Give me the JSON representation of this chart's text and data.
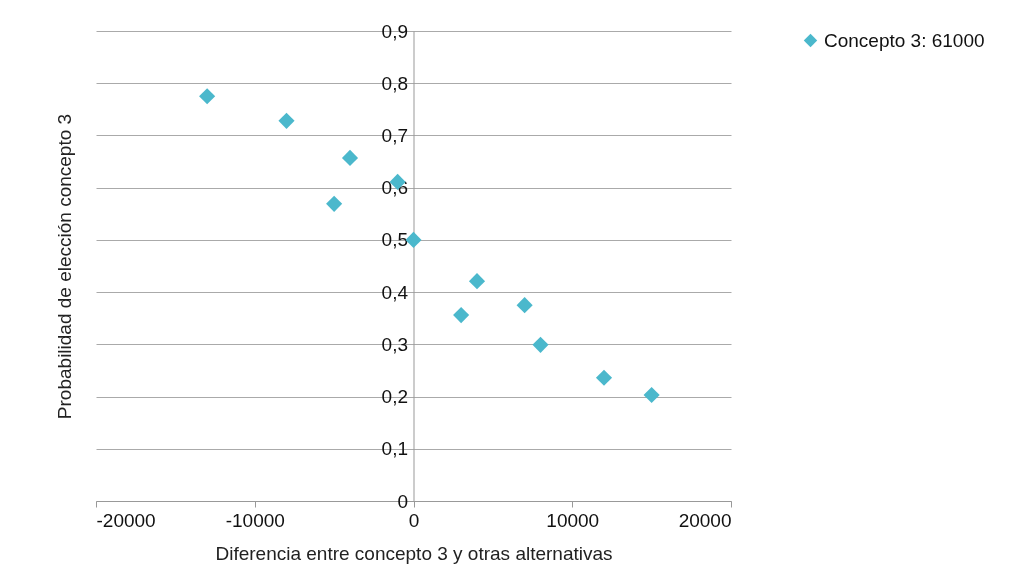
{
  "chart_data": {
    "type": "scatter",
    "xlabel": "Diferencia entre concepto 3 y otras alternativas",
    "ylabel": "Probabilidad de elección concepto 3",
    "x": [
      -13000,
      -8000,
      -4000,
      -5000,
      -1000,
      0,
      4000,
      3000,
      7000,
      8000,
      12000,
      15000
    ],
    "series": [
      {
        "name": "Concepto 3: 61000",
        "color": "#4bb8cc",
        "values": [
          0.775,
          0.728,
          0.657,
          0.569,
          0.611,
          0.5,
          0.421,
          0.356,
          0.375,
          0.299,
          0.236,
          0.203
        ]
      }
    ],
    "xlim": [
      -20000,
      20000
    ],
    "xticks": [
      -20000,
      -10000,
      0,
      10000,
      20000
    ],
    "ylim": [
      0,
      0.9
    ],
    "yticks": [
      {
        "value": 0,
        "label": "0"
      },
      {
        "value": 0.1,
        "label": "0,1"
      },
      {
        "value": 0.2,
        "label": "0,2"
      },
      {
        "value": 0.3,
        "label": "0,3"
      },
      {
        "value": 0.4,
        "label": "0,4"
      },
      {
        "value": 0.5,
        "label": "0,5"
      },
      {
        "value": 0.6,
        "label": "0,6"
      },
      {
        "value": 0.7,
        "label": "0,7"
      },
      {
        "value": 0.8,
        "label": "0,8"
      },
      {
        "value": 0.9,
        "label": "0,9"
      }
    ],
    "grid": "y",
    "legend": "right",
    "marker": "diamond"
  }
}
